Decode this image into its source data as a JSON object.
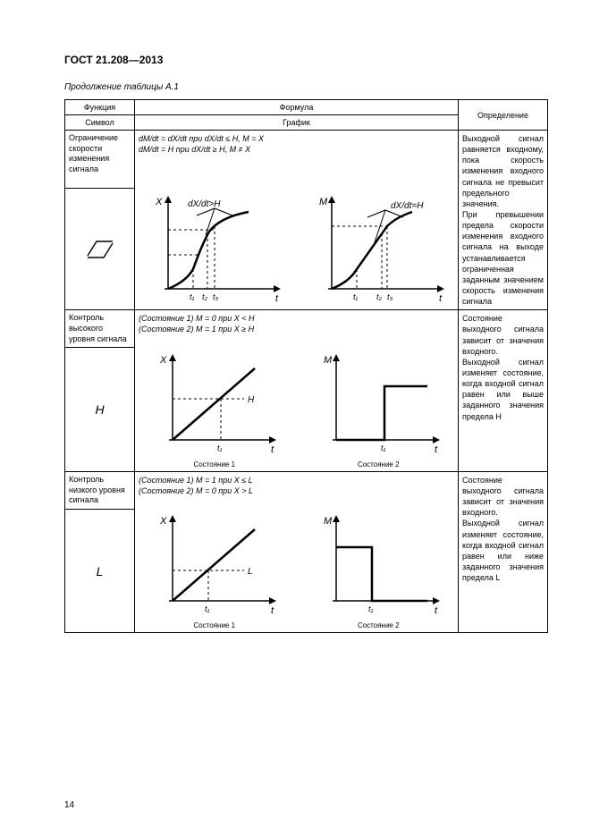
{
  "doc_title": "ГОСТ 21.208—2013",
  "table_caption": "Продолжение таблицы А.1",
  "page_number": "14",
  "headers": {
    "function": "Функция",
    "formula": "Формула",
    "definition": "Определение",
    "symbol": "Символ",
    "graph": "График"
  },
  "rows": [
    {
      "function": "Ограничение скорости изменения сигнала",
      "formula_line1": "dM/dt = dX/dt при dX/dt ≤ H, M = X",
      "formula_line2": "dM/dt = H при dX/dt ≥ H, M ≠ X",
      "definition": "Выходной сигнал равняется входному, пока скорость изменения входного сигнала не превысит предельного значения.\nПри превышении предела скорости изменения входного сигнала на выходе устанавливается ограниченная заданным значением скорость изменения сигнала",
      "graphs": {
        "g1": {
          "y_label": "X",
          "x_label": "t",
          "annotation": "dX/dt>H",
          "ticks": [
            "t₁",
            "t₂",
            "t₃"
          ]
        },
        "g2": {
          "y_label": "M",
          "x_label": "t",
          "annotation": "dX/dt=H",
          "ticks": [
            "t₁",
            "t₂",
            "t₃"
          ]
        }
      },
      "symbol": {
        "type": "rate-limit"
      }
    },
    {
      "function": "Контроль высокого уровня сигнала",
      "formula_line1": "(Состояние 1) M = 0 при X < H",
      "formula_line2": "(Состояние 2) M = 1 при X ≥ H",
      "definition": "Состояние выходного сигнала зависит от значения входного.\nВыходной сигнал изменяет состояние, когда входной сигнал равен или выше заданного значения предела H",
      "symbol_text": "H",
      "graphs": {
        "g1": {
          "y_label": "X",
          "x_label": "t",
          "threshold_label": "H",
          "tick": "t₁",
          "caption": "Состояние 1"
        },
        "g2": {
          "y_label": "M",
          "x_label": "t",
          "tick": "t₁",
          "caption": "Состояние 2",
          "step": "up"
        }
      }
    },
    {
      "function": "Контроль низкого уровня сигнала",
      "formula_line1": "(Состояние 1) M = 1 при X ≤ L",
      "formula_line2": "(Состояние 2) M = 0 при X > L",
      "definition": "Состояние выходного сигнала зависит от значения входного.\nВыходной сигнал изменяет состояние, когда входной сигнал равен или ниже заданного значения предела L",
      "symbol_text": "L",
      "graphs": {
        "g1": {
          "y_label": "X",
          "x_label": "t",
          "threshold_label": "L",
          "tick": "t₁",
          "caption": "Состояние 1"
        },
        "g2": {
          "y_label": "M",
          "x_label": "t",
          "tick": "t₁",
          "caption": "Состояние 2",
          "step": "down"
        }
      }
    }
  ]
}
